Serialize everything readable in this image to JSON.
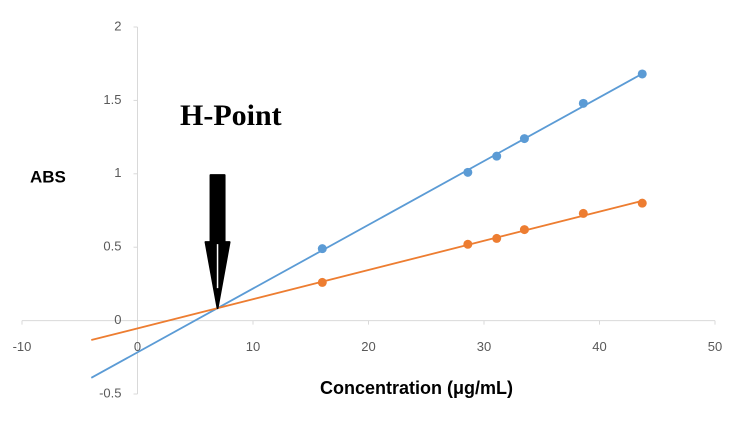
{
  "chart_data": {
    "type": "scatter",
    "annotation": "H-Point",
    "ylabel": "ABS",
    "xlabel": "Concentration (μg/mL)",
    "xlim": [
      -10,
      50
    ],
    "xticks": [
      -10,
      0,
      10,
      20,
      30,
      40,
      50
    ],
    "ylim": [
      -0.5,
      2
    ],
    "yticks": [
      -0.5,
      0,
      0.5,
      1,
      1.5,
      2
    ],
    "grid": false,
    "trendline_x_start": -4,
    "series": [
      {
        "color": "#5b9bd5",
        "x": [
          16,
          28.6,
          31.1,
          33.5,
          38.6,
          43.7
        ],
        "values": [
          0.49,
          1.01,
          1.12,
          1.24,
          1.48,
          1.68
        ]
      },
      {
        "color": "#ed7d31",
        "x": [
          16,
          28.6,
          31.1,
          33.5,
          38.6,
          43.7
        ],
        "values": [
          0.26,
          0.52,
          0.56,
          0.62,
          0.73,
          0.8
        ]
      }
    ]
  }
}
